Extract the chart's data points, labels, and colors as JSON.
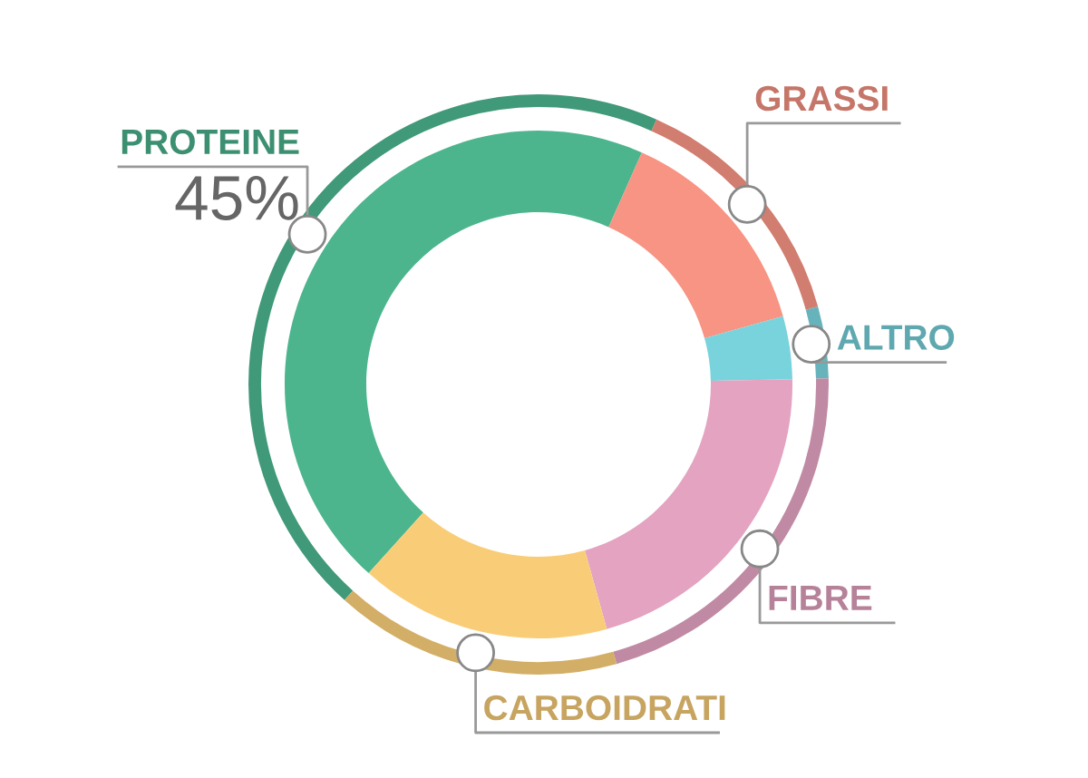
{
  "chart_data": {
    "type": "donut",
    "categories": [
      "PROTEINE",
      "GRASSI",
      "ALTRO",
      "FIBRE",
      "CARBOIDRATI"
    ],
    "values": [
      45,
      14,
      4,
      21,
      16
    ],
    "colors": [
      "#4cb58e",
      "#f79483",
      "#79d3dc",
      "#e3a3c1",
      "#f9cd78"
    ],
    "value_labels": [
      "45%",
      null,
      null,
      null,
      null
    ],
    "legend": false
  }
}
